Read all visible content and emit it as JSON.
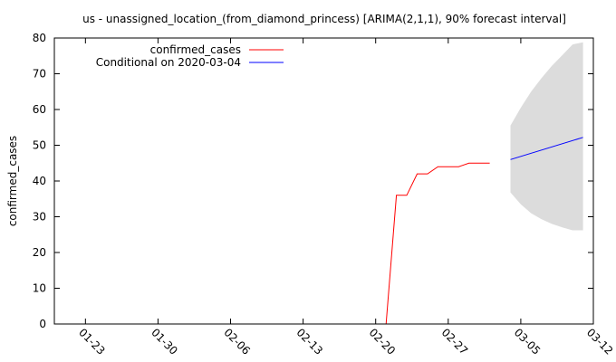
{
  "chart_data": {
    "type": "line",
    "title": "us - unassigned_location_(from_diamond_princess) [ARIMA(2,1,1), 90% forecast interval]",
    "xlabel": "",
    "ylabel": "confirmed_cases",
    "ylim": [
      0,
      80
    ],
    "yticks": [
      0,
      10,
      20,
      30,
      40,
      50,
      60,
      70,
      80
    ],
    "xlim": [
      "2020-01-20",
      "2020-03-12"
    ],
    "xticks": [
      "01-23",
      "01-30",
      "02-06",
      "02-13",
      "02-20",
      "02-27",
      "03-05",
      "03-12"
    ],
    "xtick_dates": [
      "2020-01-23",
      "2020-01-30",
      "2020-02-06",
      "2020-02-13",
      "2020-02-20",
      "2020-02-27",
      "2020-03-05",
      "2020-03-12"
    ],
    "grid": false,
    "legend_position": "top-left",
    "series": [
      {
        "name": "confirmed_cases",
        "color": "#ff0000",
        "points": [
          [
            "2020-02-21",
            0
          ],
          [
            "2020-02-22",
            36
          ],
          [
            "2020-02-23",
            36
          ],
          [
            "2020-02-24",
            42
          ],
          [
            "2020-02-25",
            42
          ],
          [
            "2020-02-26",
            44
          ],
          [
            "2020-02-27",
            44
          ],
          [
            "2020-02-28",
            44
          ],
          [
            "2020-02-29",
            45
          ],
          [
            "2020-03-01",
            45
          ],
          [
            "2020-03-02",
            45
          ]
        ]
      },
      {
        "name": "Conditional on 2020-03-04",
        "color": "#0000ff",
        "points": [
          [
            "2020-03-04",
            46
          ],
          [
            "2020-03-11",
            52.2
          ]
        ]
      }
    ],
    "forecast_interval": {
      "color": "#dcdcdc",
      "upper": [
        [
          "2020-03-04",
          55.5
        ],
        [
          "2020-03-05",
          60.5
        ],
        [
          "2020-03-06",
          65
        ],
        [
          "2020-03-07",
          68.8
        ],
        [
          "2020-03-08",
          72.2
        ],
        [
          "2020-03-09",
          75.2
        ],
        [
          "2020-03-10",
          78.2
        ],
        [
          "2020-03-11",
          78.8
        ]
      ],
      "lower": [
        [
          "2020-03-04",
          36.8
        ],
        [
          "2020-03-05",
          33.5
        ],
        [
          "2020-03-06",
          31
        ],
        [
          "2020-03-07",
          29.3
        ],
        [
          "2020-03-08",
          28
        ],
        [
          "2020-03-09",
          27
        ],
        [
          "2020-03-10",
          26.2
        ],
        [
          "2020-03-11",
          26.2
        ]
      ]
    }
  }
}
